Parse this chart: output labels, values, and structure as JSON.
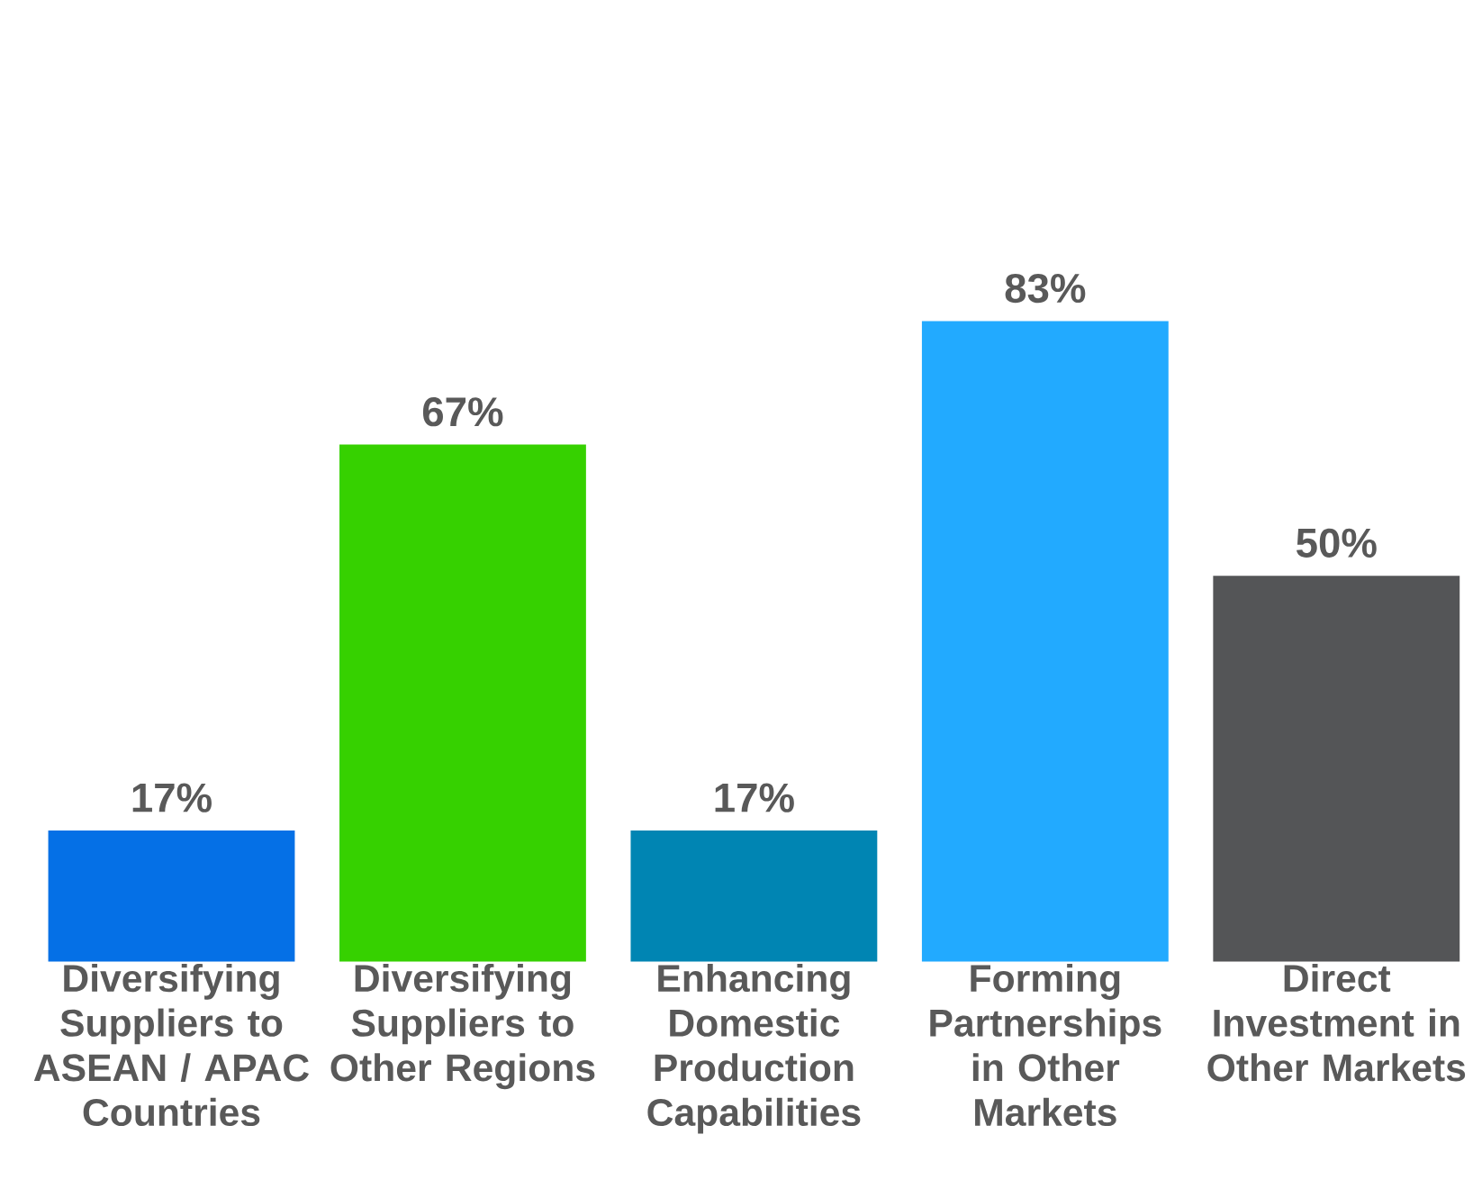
{
  "chart_data": {
    "type": "bar",
    "categories": [
      "Diversifying Suppliers to ASEAN / APAC Countries",
      "Diversifying Suppliers to Other Regions",
      "Enhancing Domestic Production Capabilities",
      "Forming Partnerships in Other Markets",
      "Direct Investment in Other Markets"
    ],
    "values": [
      17,
      67,
      17,
      83,
      50
    ],
    "colors": [
      "#0570e6",
      "#36d100",
      "#0085b3",
      "#22aaff",
      "#545557"
    ],
    "value_labels": [
      "17%",
      "67%",
      "17%",
      "83%",
      "50%"
    ],
    "tick_labels": "x"
  }
}
